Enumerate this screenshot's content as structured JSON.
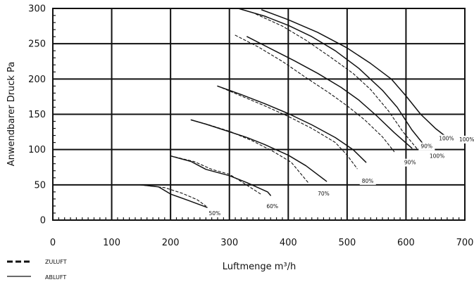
{
  "chart_data": {
    "type": "line",
    "xlabel": "Luftmenge m³/h",
    "ylabel": "Anwendbarer Druck Pa",
    "xlim": [
      0,
      700
    ],
    "ylim": [
      0,
      300
    ],
    "xticks": [
      "0",
      "100",
      "200",
      "300",
      "400",
      "500",
      "600",
      "700"
    ],
    "yticks": [
      "0",
      "50",
      "100",
      "150",
      "200",
      "250",
      "300"
    ],
    "grid": true,
    "legend": {
      "placement": "bottom-left",
      "entries": [
        {
          "label": "ZULUFT",
          "style": "dashed"
        },
        {
          "label": "ABLUFT",
          "style": "solid"
        }
      ]
    },
    "series": [
      {
        "style": "solid",
        "points": [
          [
            148,
            50
          ],
          [
            180,
            47
          ],
          [
            200,
            37
          ],
          [
            230,
            28
          ],
          [
            262,
            18
          ]
        ]
      },
      {
        "style": "dashed",
        "points": [
          [
            148,
            50
          ],
          [
            190,
            46
          ],
          [
            220,
            38
          ],
          [
            245,
            29
          ],
          [
            260,
            20
          ]
        ]
      },
      {
        "style": "solid",
        "points": [
          [
            200,
            91
          ],
          [
            235,
            83
          ],
          [
            260,
            72
          ],
          [
            300,
            63
          ],
          [
            330,
            53
          ],
          [
            365,
            40
          ],
          [
            370,
            35
          ]
        ]
      },
      {
        "style": "dashed",
        "points": [
          [
            200,
            91
          ],
          [
            240,
            83
          ],
          [
            270,
            72
          ],
          [
            300,
            65
          ],
          [
            325,
            52
          ],
          [
            355,
            36
          ]
        ]
      },
      {
        "style": "solid",
        "points": [
          [
            235,
            142
          ],
          [
            260,
            136
          ],
          [
            290,
            128
          ],
          [
            330,
            117
          ],
          [
            360,
            107
          ],
          [
            400,
            92
          ],
          [
            430,
            77
          ],
          [
            465,
            55
          ]
        ]
      },
      {
        "style": "dashed",
        "points": [
          [
            235,
            142
          ],
          [
            265,
            135
          ],
          [
            300,
            126
          ],
          [
            340,
            112
          ],
          [
            375,
            97
          ],
          [
            405,
            82
          ],
          [
            435,
            52
          ]
        ]
      },
      {
        "style": "solid",
        "points": [
          [
            280,
            190
          ],
          [
            320,
            178
          ],
          [
            360,
            165
          ],
          [
            400,
            151
          ],
          [
            440,
            135
          ],
          [
            480,
            117
          ],
          [
            510,
            100
          ],
          [
            532,
            82
          ]
        ]
      },
      {
        "style": "dashed",
        "points": [
          [
            280,
            190
          ],
          [
            320,
            176
          ],
          [
            360,
            162
          ],
          [
            400,
            147
          ],
          [
            440,
            130
          ],
          [
            480,
            110
          ],
          [
            500,
            92
          ],
          [
            517,
            73
          ]
        ]
      },
      {
        "style": "solid",
        "points": [
          [
            330,
            260
          ],
          [
            370,
            243
          ],
          [
            410,
            226
          ],
          [
            450,
            208
          ],
          [
            490,
            188
          ],
          [
            520,
            170
          ],
          [
            550,
            148
          ],
          [
            580,
            124
          ],
          [
            610,
            102
          ]
        ]
      },
      {
        "style": "dashed",
        "points": [
          [
            310,
            262
          ],
          [
            350,
            245
          ],
          [
            390,
            225
          ],
          [
            430,
            202
          ],
          [
            470,
            180
          ],
          [
            500,
            162
          ],
          [
            530,
            142
          ],
          [
            560,
            118
          ],
          [
            580,
            97
          ]
        ]
      },
      {
        "style": "solid",
        "points": [
          [
            315,
            300
          ],
          [
            360,
            289
          ],
          [
            400,
            276
          ],
          [
            440,
            260
          ],
          [
            480,
            240
          ],
          [
            520,
            215
          ],
          [
            560,
            184
          ],
          [
            585,
            160
          ],
          [
            610,
            128
          ],
          [
            635,
            102
          ]
        ]
      },
      {
        "style": "dashed",
        "points": [
          [
            345,
            292
          ],
          [
            390,
            275
          ],
          [
            430,
            255
          ],
          [
            470,
            232
          ],
          [
            510,
            208
          ],
          [
            540,
            185
          ],
          [
            570,
            155
          ],
          [
            595,
            125
          ],
          [
            620,
            100
          ]
        ]
      },
      {
        "style": "solid",
        "points": [
          [
            355,
            298
          ],
          [
            400,
            284
          ],
          [
            450,
            266
          ],
          [
            500,
            244
          ],
          [
            540,
            222
          ],
          [
            575,
            200
          ],
          [
            600,
            176
          ],
          [
            625,
            150
          ],
          [
            650,
            130
          ],
          [
            673,
            115
          ]
        ]
      }
    ],
    "annotations": [
      "50%",
      "60%",
      "70%",
      "80%",
      "90%",
      "100%",
      "90%",
      "100%",
      "100%"
    ]
  }
}
